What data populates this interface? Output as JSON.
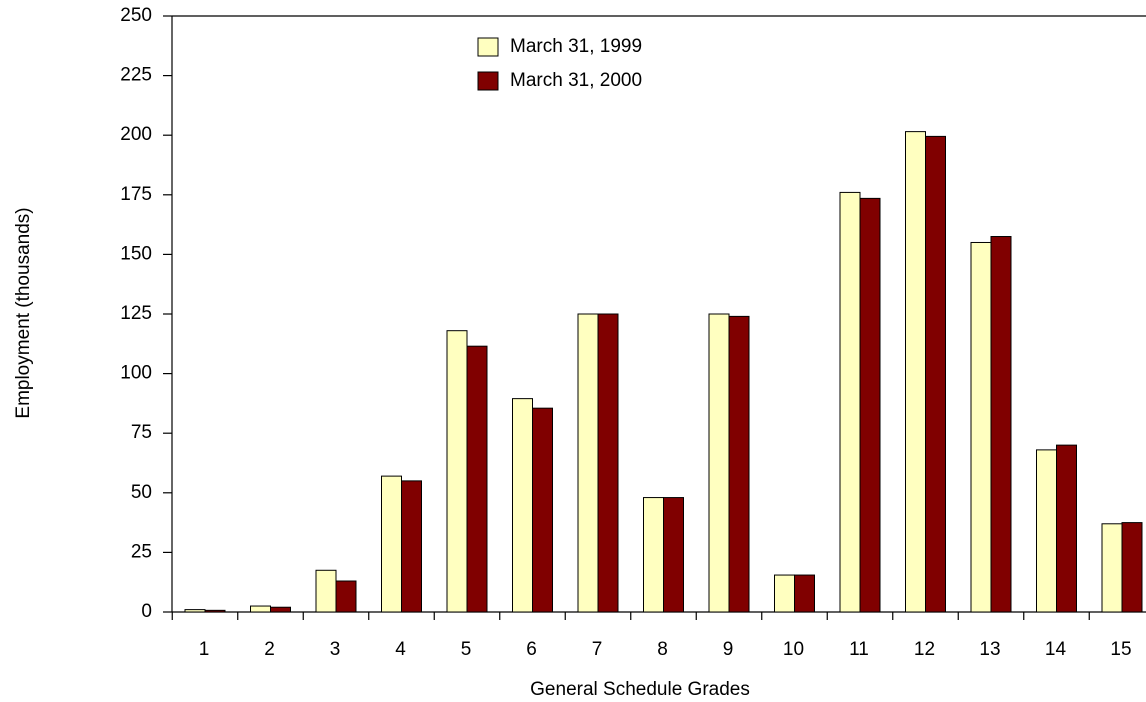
{
  "chart_data": {
    "type": "bar",
    "x_label": "General Schedule Grades",
    "y_label": "Employment (thousands)",
    "categories": [
      "1",
      "2",
      "3",
      "4",
      "5",
      "6",
      "7",
      "8",
      "9",
      "10",
      "11",
      "12",
      "13",
      "14",
      "15"
    ],
    "series": [
      {
        "name": "March 31, 1999",
        "color": "#ffffc0",
        "values": [
          1,
          2.5,
          17.5,
          57,
          118,
          89.5,
          125,
          48,
          125,
          15.5,
          176,
          201.5,
          155,
          68,
          37
        ]
      },
      {
        "name": "March 31, 2000",
        "color": "#800000",
        "values": [
          0.7,
          2,
          13,
          55,
          111.5,
          85.5,
          125,
          48,
          124,
          15.5,
          173.5,
          199.5,
          157.5,
          70,
          37.5
        ]
      }
    ],
    "ylim": [
      0,
      250
    ],
    "yticks": [
      0,
      25,
      50,
      75,
      100,
      125,
      150,
      175,
      200,
      225,
      250
    ]
  }
}
